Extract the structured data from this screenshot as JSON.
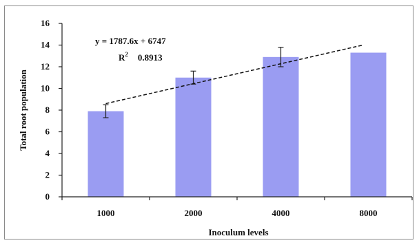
{
  "chart_data": {
    "type": "bar",
    "categories": [
      "1000",
      "2000",
      "4000",
      "8000"
    ],
    "values": [
      7.9,
      11.0,
      12.9,
      13.3
    ],
    "error_bars": [
      0.6,
      0.6,
      0.9,
      null
    ],
    "xlabel": "Inoculum levels",
    "ylabel": "Total root population",
    "ylim": [
      0,
      16
    ],
    "yticks": [
      "0",
      "2",
      "4",
      "6",
      "8",
      "10",
      "12",
      "14",
      "16"
    ],
    "grid": false,
    "bar_color": "#9a9cf2",
    "trendline": {
      "type": "linear",
      "style": "dashed",
      "start": 8.6,
      "end": 14.0,
      "equation": "y = 1787.6x + 6747",
      "r2_label": "R",
      "r2_sup": "2",
      "r2_value": "0.8913"
    }
  }
}
